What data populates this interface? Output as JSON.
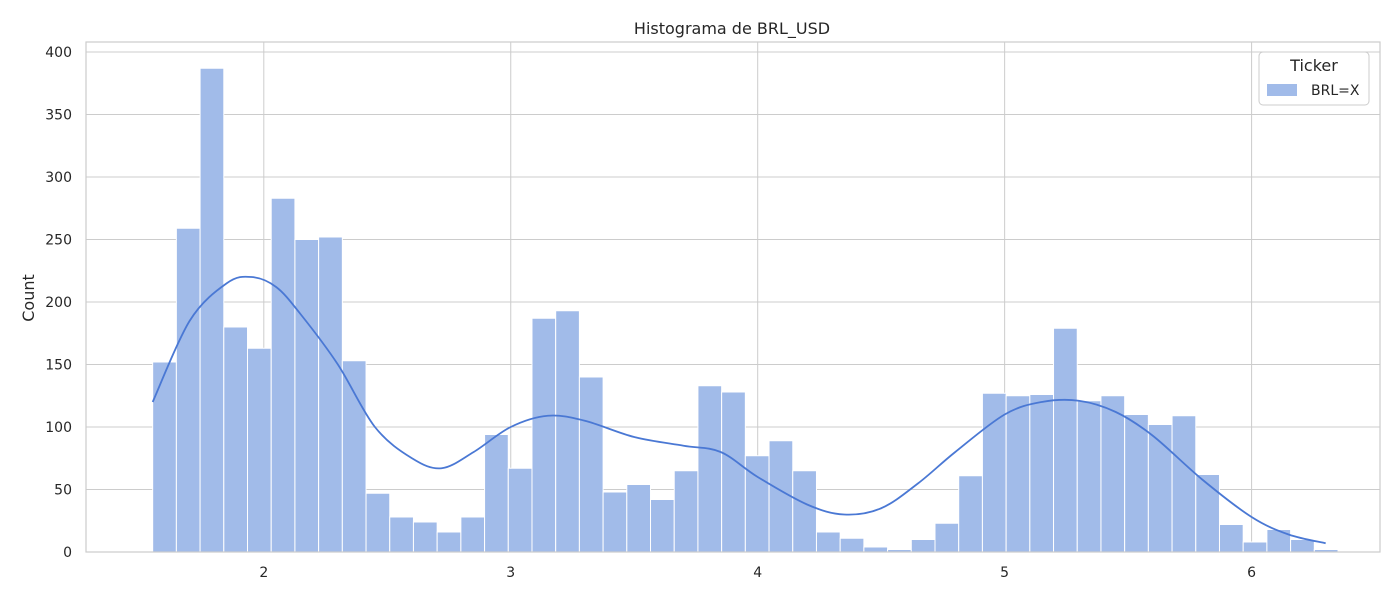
{
  "chart_data": {
    "type": "bar",
    "title": "Histograma de BRL_USD",
    "xlabel": "",
    "ylabel": "Count",
    "xlim": [
      1.28,
      6.52
    ],
    "ylim": [
      0,
      408
    ],
    "xticks": [
      2,
      3,
      4,
      5,
      6
    ],
    "yticks": [
      0,
      50,
      100,
      150,
      200,
      250,
      300,
      350,
      400
    ],
    "grid": true,
    "bin_start": 1.55,
    "bin_width": 0.096,
    "counts": [
      152,
      259,
      387,
      180,
      163,
      283,
      250,
      252,
      153,
      47,
      28,
      24,
      16,
      28,
      94,
      67,
      187,
      193,
      140,
      48,
      54,
      42,
      65,
      133,
      128,
      77,
      89,
      65,
      16,
      11,
      4,
      2,
      10,
      23,
      61,
      127,
      125,
      126,
      179,
      121,
      125,
      110,
      102,
      109,
      62,
      22,
      8,
      18,
      10,
      2
    ],
    "kde": {
      "x": [
        1.55,
        1.7,
        1.85,
        1.95,
        2.05,
        2.15,
        2.3,
        2.45,
        2.6,
        2.72,
        2.85,
        3.0,
        3.15,
        3.3,
        3.5,
        3.7,
        3.85,
        4.0,
        4.2,
        4.35,
        4.5,
        4.65,
        4.8,
        5.0,
        5.15,
        5.3,
        5.45,
        5.6,
        5.8,
        6.0,
        6.15,
        6.3
      ],
      "y": [
        120,
        185,
        215,
        220,
        212,
        190,
        150,
        100,
        75,
        67,
        80,
        100,
        109,
        105,
        92,
        85,
        80,
        60,
        38,
        30,
        35,
        55,
        80,
        110,
        120,
        121,
        112,
        93,
        58,
        28,
        14,
        7
      ]
    },
    "legend": {
      "title": "Ticker",
      "position": "top-right",
      "entries": [
        {
          "name": "BRL=X"
        }
      ]
    },
    "colors": {
      "bar": "#a1bbe9",
      "line": "#4a78d4",
      "grid": "#cccccc",
      "text": "#262626"
    }
  }
}
